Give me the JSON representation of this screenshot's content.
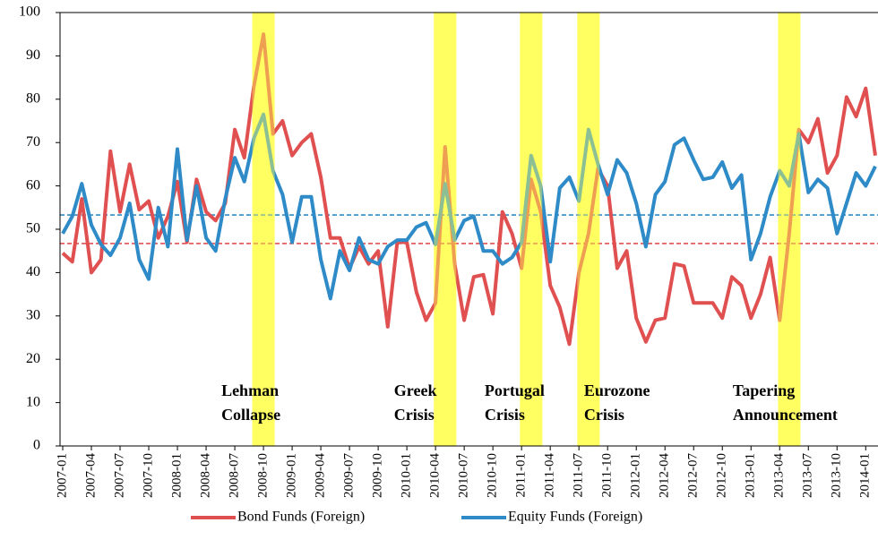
{
  "chart_data": {
    "type": "line",
    "categories": [
      "2007-01",
      null,
      null,
      "2007-04",
      null,
      null,
      "2007-07",
      null,
      null,
      "2007-10",
      null,
      null,
      "2008-01",
      null,
      null,
      "2008-04",
      null,
      null,
      "2008-07",
      null,
      null,
      "2008-10",
      null,
      null,
      "2009-01",
      null,
      null,
      "2009-04",
      null,
      null,
      "2009-07",
      null,
      null,
      "2009-10",
      null,
      null,
      "2010-01",
      null,
      null,
      "2010-04",
      null,
      null,
      "2010-07",
      null,
      null,
      "2010-10",
      null,
      null,
      "2011-01",
      null,
      null,
      "2011-04",
      null,
      null,
      "2011-07",
      null,
      null,
      "2011-10",
      null,
      null,
      "2012-01",
      null,
      null,
      "2012-04",
      null,
      null,
      "2012-07",
      null,
      null,
      "2012-10",
      null,
      null,
      "2013-01",
      null,
      null,
      "2013-04",
      null,
      null,
      "2013-07",
      null,
      null,
      "2013-10",
      null,
      null,
      "2014-01",
      null
    ],
    "series": [
      {
        "name": "Bond Funds (Foreign)",
        "color": "#e05050",
        "values": [
          44.5,
          42.5,
          57,
          40,
          43,
          68,
          54,
          65,
          54.5,
          56.5,
          48,
          53,
          61,
          47,
          61.5,
          54,
          52,
          56,
          73,
          66.5,
          83,
          95,
          72,
          75,
          67,
          70,
          72,
          62,
          48,
          48,
          41,
          46,
          42,
          45,
          27.5,
          47,
          47,
          35.5,
          29,
          33,
          69,
          42,
          29,
          39,
          39.5,
          30.5,
          54,
          49,
          41,
          61.5,
          54,
          37,
          32,
          23.5,
          40,
          49,
          64,
          60,
          41,
          45,
          29.5,
          24,
          29,
          29.5,
          42,
          41.5,
          33,
          33,
          33,
          29.5,
          39,
          37,
          29.5,
          35,
          43.5,
          29,
          49,
          73,
          70,
          75.5,
          63,
          67,
          80.5,
          76,
          82.5,
          67
        ],
        "mean": 46.7
      },
      {
        "name": "Equity Funds (Foreign)",
        "color": "#2e8bc7",
        "values": [
          49,
          53,
          60.5,
          51,
          46.5,
          44,
          48,
          56,
          43,
          38.5,
          55,
          46,
          68.5,
          47.5,
          60,
          48,
          45,
          57,
          66.5,
          61,
          71,
          76.5,
          63.5,
          58,
          47,
          57.5,
          57.5,
          43,
          34,
          45,
          40.5,
          48,
          43,
          42,
          46,
          47.5,
          47.5,
          50.5,
          51.5,
          46.5,
          60.5,
          47.5,
          52,
          53,
          45,
          45,
          42,
          43.5,
          47,
          67,
          60,
          42.5,
          59.5,
          62,
          56.5,
          73,
          65,
          58,
          66,
          63,
          56,
          46,
          58,
          61,
          69.5,
          71,
          66,
          61.5,
          62,
          65.5,
          59.5,
          62.5,
          43,
          49,
          57.5,
          63.5,
          60,
          72,
          58.5,
          61.5,
          59.5,
          49,
          56,
          63,
          60,
          64.5
        ],
        "mean": 53.3
      }
    ],
    "highlights": [
      {
        "month": "2008-10",
        "label": [
          "Lehman",
          "Collapse"
        ]
      },
      {
        "month": "2010-05",
        "label": [
          "Greek",
          "Crisis"
        ]
      },
      {
        "month": "2011-02",
        "label": [
          "Portugal",
          "Crisis"
        ]
      },
      {
        "month": "2011-08",
        "label": [
          "Eurozone",
          "Crisis"
        ]
      },
      {
        "month": "2013-05",
        "label": [
          "Tapering",
          "Announcement"
        ]
      }
    ],
    "highlight_color": "#ffff55",
    "ylim": [
      0,
      100
    ],
    "yticks": [
      0,
      10,
      20,
      30,
      40,
      50,
      60,
      70,
      80,
      90,
      100
    ]
  }
}
